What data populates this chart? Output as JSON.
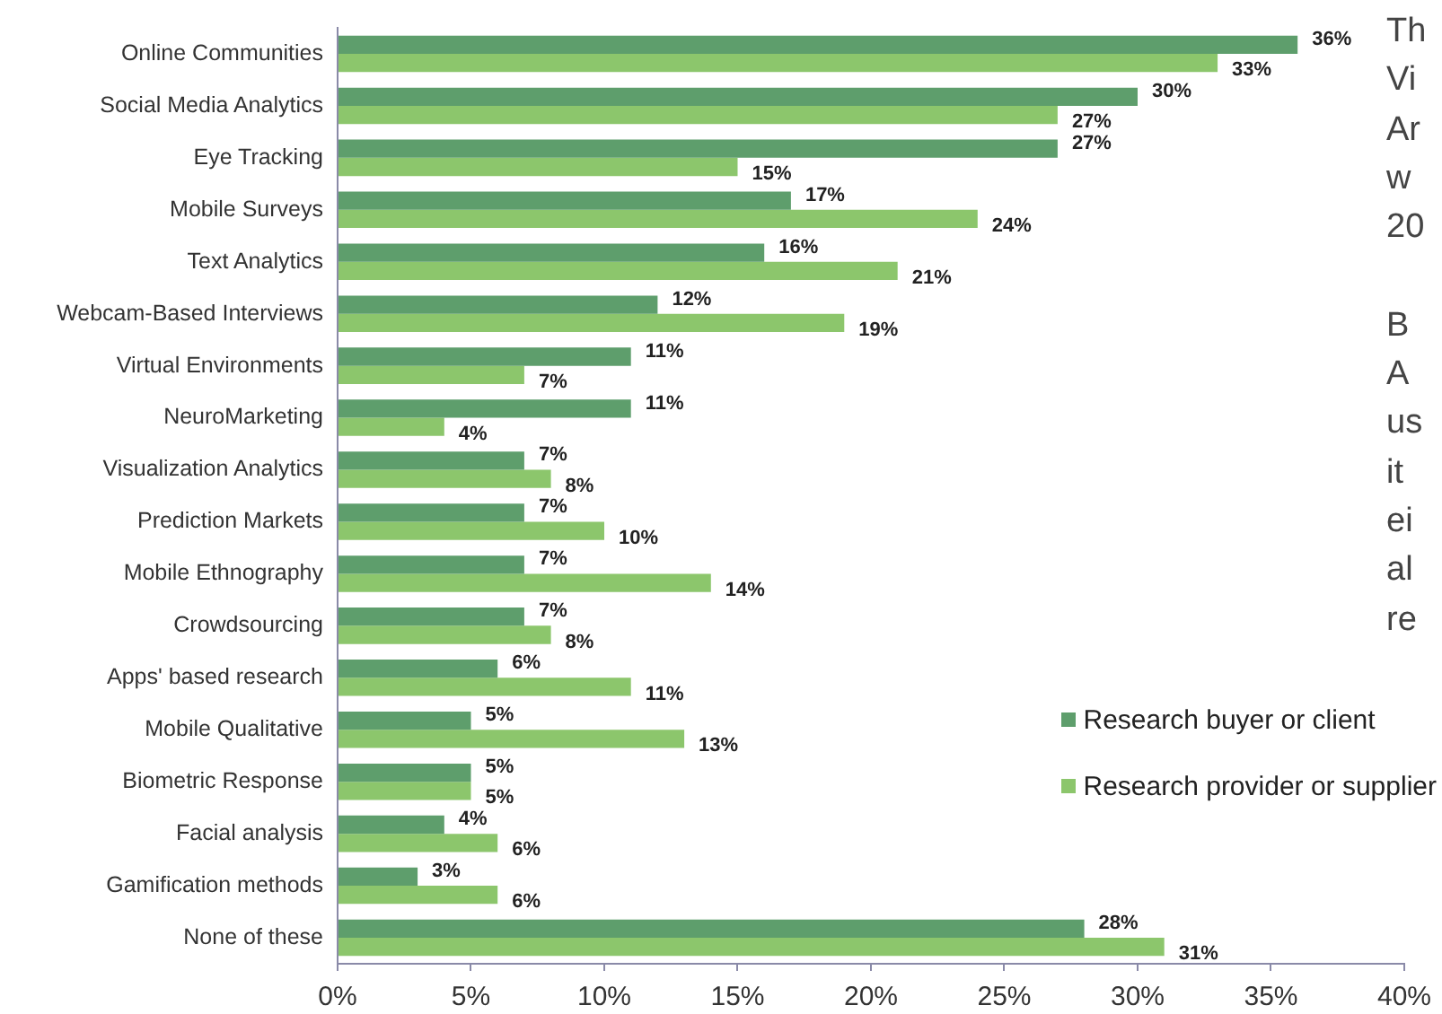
{
  "chart_data": {
    "type": "bar",
    "orientation": "horizontal",
    "categories": [
      "Online Communities",
      "Social Media Analytics",
      "Eye Tracking",
      "Mobile Surveys",
      "Text Analytics",
      "Webcam-Based Interviews",
      "Virtual Environments",
      "NeuroMarketing",
      "Visualization Analytics",
      "Prediction Markets",
      "Mobile Ethnography",
      "Crowdsourcing",
      "Apps' based research",
      "Mobile Qualitative",
      "Biometric Response",
      "Facial analysis",
      "Gamification methods",
      "None of these"
    ],
    "series": [
      {
        "name": "Research buyer or client",
        "color": "#5e9e6c",
        "values": [
          36,
          30,
          27,
          17,
          16,
          12,
          11,
          11,
          7,
          7,
          7,
          7,
          6,
          5,
          5,
          4,
          3,
          28
        ],
        "value_labels": [
          "36%",
          "30%",
          "27%",
          "17%",
          "16%",
          "12%",
          "11%",
          "11%",
          "7%",
          "7%",
          "7%",
          "7%",
          "6%",
          "5%",
          "5%",
          "4%",
          "3%",
          "28%"
        ]
      },
      {
        "name": "Research provider or supplier",
        "color": "#8cc66c",
        "values": [
          33,
          27,
          15,
          24,
          21,
          19,
          7,
          4,
          8,
          10,
          14,
          8,
          11,
          13,
          5,
          6,
          6,
          31
        ],
        "value_labels": [
          "33%",
          "27%",
          "15%",
          "24%",
          "21%",
          "19%",
          "7%",
          "4%",
          "8%",
          "10%",
          "14%",
          "8%",
          "11%",
          "13%",
          "5%",
          "6%",
          "6%",
          "31%"
        ]
      }
    ],
    "xlim": [
      0,
      40
    ],
    "xticks": [
      {
        "value": 0,
        "label": "0%"
      },
      {
        "value": 5,
        "label": "5%"
      },
      {
        "value": 10,
        "label": "10%"
      },
      {
        "value": 15,
        "label": "15%"
      },
      {
        "value": 20,
        "label": "20%"
      },
      {
        "value": 25,
        "label": "25%"
      },
      {
        "value": 30,
        "label": "30%"
      },
      {
        "value": 35,
        "label": "35%"
      },
      {
        "value": 40,
        "label": "40%"
      }
    ],
    "legend": "bottom right",
    "annotations": [
      "Th\nVi\nAr\nw\n20",
      "B\nA\nus\nit\nei\nal\nre"
    ]
  }
}
